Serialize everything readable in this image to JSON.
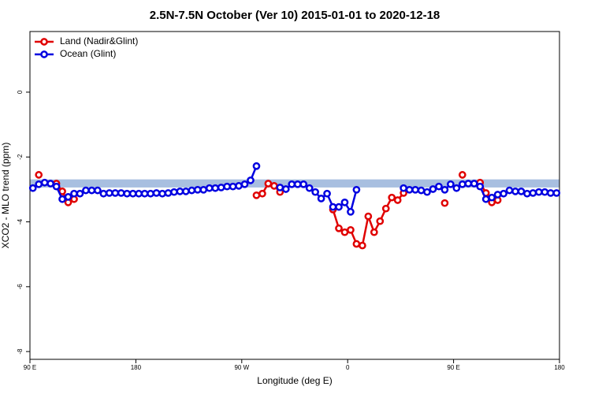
{
  "chart_data": {
    "type": "line",
    "title": "2.5N-7.5N October (Ver 10)   2015-01-01 to 2020-12-18",
    "x_label": "Longitude (deg E)",
    "y_label": "XCO2 - MLO trend (ppm)",
    "xlim": [
      90,
      540
    ],
    "xticks": [
      {
        "value": 90,
        "label": "90 E"
      },
      {
        "value": 180,
        "label": "180"
      },
      {
        "value": 270,
        "label": "90 W"
      },
      {
        "value": 360,
        "label": "0"
      },
      {
        "value": 450,
        "label": "90 E"
      },
      {
        "value": 540,
        "label": "180"
      }
    ],
    "ylim": [
      -8.24,
      1.87
    ],
    "yticks": [
      -8,
      -6,
      -4,
      -2,
      0
    ],
    "legend": "top-left",
    "band": {
      "lower": -2.94,
      "upper": -2.69,
      "color": "#a8bfe0"
    },
    "x": [
      92.5,
      97.5,
      102.5,
      107.5,
      112.5,
      117.5,
      122.5,
      127.5,
      132.5,
      137.5,
      142.5,
      147.5,
      152.5,
      157.5,
      162.5,
      167.5,
      172.5,
      177.5,
      182.5,
      187.5,
      192.5,
      197.5,
      202.5,
      207.5,
      212.5,
      217.5,
      222.5,
      227.5,
      232.5,
      237.5,
      242.5,
      247.5,
      252.5,
      257.5,
      262.5,
      267.5,
      272.5,
      277.5,
      282.5,
      287.5,
      292.5,
      297.5,
      302.5,
      307.5,
      312.5,
      317.5,
      322.5,
      327.5,
      332.5,
      337.5,
      342.5,
      347.5,
      352.5,
      357.5,
      362.5,
      367.5,
      372.5,
      377.5,
      382.5,
      387.5,
      392.5,
      397.5,
      402.5,
      407.5,
      412.5,
      417.5,
      422.5,
      427.5,
      432.5,
      437.5,
      442.5,
      447.5,
      452.5,
      457.5,
      462.5,
      467.5,
      472.5,
      477.5,
      482.5,
      487.5,
      492.5,
      497.5,
      502.5,
      507.5,
      512.5,
      517.5,
      522.5,
      527.5,
      532.5,
      537.5
    ],
    "series": [
      {
        "name": "Land (Nadir&Glint)",
        "color": "#e00000",
        "values": [
          null,
          -2.55,
          null,
          null,
          -2.82,
          -3.06,
          -3.4,
          -3.3,
          null,
          null,
          null,
          null,
          null,
          null,
          null,
          null,
          null,
          null,
          null,
          null,
          null,
          null,
          null,
          null,
          null,
          null,
          null,
          null,
          null,
          null,
          null,
          null,
          null,
          null,
          null,
          null,
          null,
          null,
          -3.18,
          -3.13,
          -2.82,
          -2.89,
          -3.08,
          null,
          null,
          null,
          null,
          null,
          null,
          null,
          null,
          -3.62,
          -4.2,
          -4.32,
          -4.25,
          -4.68,
          -4.73,
          -3.83,
          -4.32,
          -3.98,
          -3.59,
          -3.25,
          -3.33,
          -3.11,
          null,
          null,
          null,
          null,
          null,
          null,
          -3.42,
          null,
          null,
          -2.55,
          null,
          null,
          -2.79,
          -3.11,
          -3.4,
          -3.33,
          null,
          null,
          null,
          null,
          null,
          null,
          null,
          null,
          null,
          null
        ]
      },
      {
        "name": "Ocean (Glint)",
        "color": "#0000e0",
        "values": [
          -2.96,
          -2.84,
          -2.79,
          -2.82,
          -2.91,
          -3.3,
          -3.23,
          -3.13,
          -3.13,
          -3.03,
          -3.03,
          -3.03,
          -3.13,
          -3.11,
          -3.11,
          -3.11,
          -3.13,
          -3.13,
          -3.13,
          -3.13,
          -3.13,
          -3.11,
          -3.13,
          -3.11,
          -3.08,
          -3.06,
          -3.06,
          -3.03,
          -3.01,
          -3.01,
          -2.96,
          -2.96,
          -2.94,
          -2.91,
          -2.91,
          -2.89,
          -2.84,
          -2.72,
          -2.28,
          null,
          null,
          null,
          -2.94,
          -2.99,
          -2.84,
          -2.84,
          -2.84,
          -2.96,
          -3.08,
          -3.28,
          -3.13,
          -3.54,
          -3.54,
          -3.4,
          -3.69,
          -3.01,
          null,
          null,
          null,
          null,
          null,
          null,
          null,
          -2.96,
          -3.01,
          -3.01,
          -3.03,
          -3.08,
          -2.99,
          -2.91,
          -3.01,
          -2.84,
          -2.96,
          -2.84,
          -2.82,
          -2.82,
          -2.91,
          -3.3,
          -3.25,
          -3.16,
          -3.13,
          -3.03,
          -3.06,
          -3.06,
          -3.13,
          -3.11,
          -3.08,
          -3.08,
          -3.11,
          -3.11
        ]
      }
    ]
  }
}
